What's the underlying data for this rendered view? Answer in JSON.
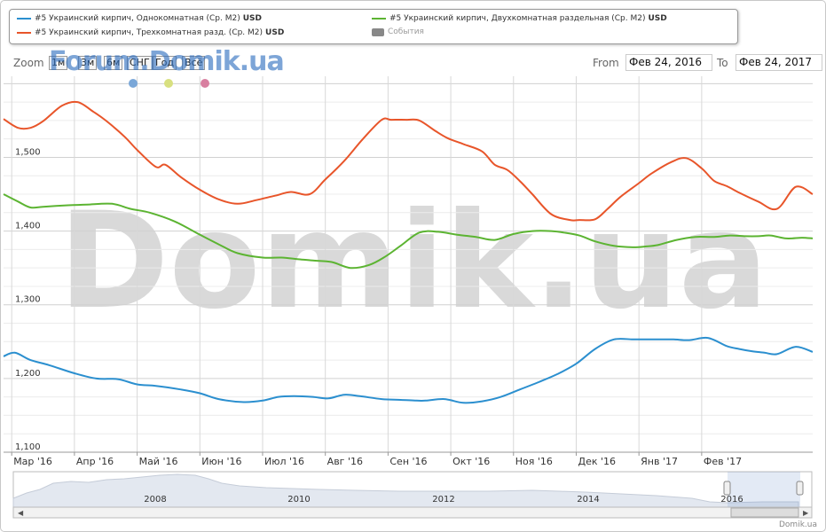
{
  "legend": {
    "items": [
      {
        "label": "#5 Украинский кирпич, Однокомнатная (Ср. М2)",
        "unit": "USD",
        "color": "#2b8fcf"
      },
      {
        "label": "#5 Украинский кирпич, Двухкомнатная раздельная (Ср. М2)",
        "unit": "USD",
        "color": "#5cb432"
      },
      {
        "label": "#5 Украинский кирпич, Трехкомнатная разд. (Ср. М2)",
        "unit": "USD",
        "color": "#e8552a"
      },
      {
        "label": "События",
        "unit": "",
        "color": "#888888"
      }
    ]
  },
  "zoom": {
    "label": "Zoom",
    "buttons": [
      "1м",
      "3м",
      "6м",
      "СНГ",
      "Год",
      "Всё"
    ]
  },
  "watermark_small": "Forum.Domik.ua",
  "watermark_big": "Domik.ua",
  "range": {
    "from_label": "From",
    "from_value": "Фев 24, 2016",
    "to_label": "To",
    "to_value": "Фев 24, 2017"
  },
  "event_dots": [
    {
      "color": "#7aa7d8"
    },
    {
      "color": "#d8e080"
    },
    {
      "color": "#d87fa0"
    }
  ],
  "navigator": {
    "labels": [
      "2008",
      "2010",
      "2012",
      "2014",
      "2016"
    ]
  },
  "credit": "Domik.ua",
  "chart_data": {
    "type": "line",
    "ylim": [
      1100,
      1610
    ],
    "yticks": [
      "1,100",
      "1,200",
      "1,300",
      "1,400",
      "1,500"
    ],
    "ytick_values": [
      1100,
      1200,
      1300,
      1400,
      1500
    ],
    "x_axis_labels": [
      "Мар '16",
      "Апр '16",
      "Май '16",
      "Июн '16",
      "Июл '16",
      "Авг '16",
      "Сен '16",
      "Окт '16",
      "Ноя '16",
      "Дек '16",
      "Янв '17",
      "Фев '17"
    ],
    "x_range": [
      -0.13,
      12.77
    ],
    "series": [
      {
        "name": "#5 Украинский кирпич, Однокомнатная (Ср. М2)",
        "color": "#2b8fcf",
        "x": [
          -0.13,
          0.05,
          0.3,
          0.6,
          1.0,
          1.35,
          1.7,
          2.0,
          2.3,
          2.7,
          3.0,
          3.3,
          3.7,
          4.0,
          4.25,
          4.5,
          4.8,
          5.05,
          5.3,
          5.55,
          5.9,
          6.2,
          6.45,
          6.6,
          6.9,
          7.2,
          7.5,
          7.8,
          8.1,
          8.4,
          8.7,
          9.0,
          9.3,
          9.6,
          9.9,
          10.1,
          10.3,
          10.55,
          10.8,
          11.1,
          11.4,
          11.6,
          11.8,
          12.0,
          12.2,
          12.5,
          12.77
        ],
        "y": [
          1230,
          1235,
          1225,
          1218,
          1207,
          1200,
          1199,
          1192,
          1190,
          1185,
          1180,
          1172,
          1168,
          1170,
          1175,
          1176,
          1175,
          1173,
          1178,
          1176,
          1172,
          1171,
          1170,
          1170,
          1172,
          1167,
          1169,
          1175,
          1185,
          1195,
          1206,
          1220,
          1240,
          1253,
          1253,
          1253,
          1253,
          1253,
          1252,
          1255,
          1244,
          1240,
          1237,
          1235,
          1233,
          1243,
          1236
        ]
      },
      {
        "name": "#5 Украинский кирпич, Двухкомнатная раздельная (Ср. М2)",
        "color": "#5cb432",
        "x": [
          -0.13,
          0.1,
          0.3,
          0.5,
          0.9,
          1.2,
          1.6,
          1.9,
          2.2,
          2.6,
          3.0,
          3.3,
          3.6,
          4.0,
          4.3,
          4.55,
          4.8,
          5.1,
          5.4,
          5.7,
          5.95,
          6.2,
          6.5,
          6.8,
          7.1,
          7.4,
          7.7,
          8.0,
          8.3,
          8.6,
          8.8,
          9.05,
          9.3,
          9.6,
          9.9,
          10.1,
          10.3,
          10.6,
          10.9,
          11.2,
          11.45,
          11.7,
          11.9,
          12.1,
          12.35,
          12.6,
          12.77
        ],
        "y": [
          1450,
          1440,
          1432,
          1433,
          1435,
          1436,
          1437,
          1430,
          1425,
          1413,
          1395,
          1382,
          1370,
          1364,
          1364,
          1362,
          1360,
          1358,
          1350,
          1354,
          1365,
          1380,
          1398,
          1399,
          1395,
          1392,
          1388,
          1396,
          1400,
          1400,
          1398,
          1394,
          1386,
          1380,
          1378,
          1379,
          1381,
          1388,
          1392,
          1392,
          1394,
          1393,
          1393,
          1394,
          1390,
          1391,
          1390
        ]
      },
      {
        "name": "#5 Украинский кирпич, Трехкомнатная разд. (Ср. М2)",
        "color": "#e8552a",
        "x": [
          -0.13,
          0.1,
          0.3,
          0.5,
          0.8,
          1.05,
          1.3,
          1.5,
          1.8,
          2.0,
          2.3,
          2.45,
          2.7,
          3.0,
          3.3,
          3.6,
          3.9,
          4.2,
          4.45,
          4.75,
          5.0,
          5.3,
          5.6,
          5.9,
          6.05,
          6.3,
          6.5,
          6.75,
          6.95,
          7.2,
          7.5,
          7.7,
          7.9,
          8.1,
          8.3,
          8.6,
          8.9,
          9.05,
          9.3,
          9.5,
          9.7,
          10.0,
          10.2,
          10.5,
          10.75,
          11.0,
          11.2,
          11.4,
          11.6,
          11.9,
          12.2,
          12.5,
          12.77
        ],
        "y": [
          1552,
          1540,
          1540,
          1549,
          1570,
          1575,
          1562,
          1550,
          1528,
          1510,
          1487,
          1490,
          1473,
          1456,
          1443,
          1437,
          1442,
          1448,
          1453,
          1450,
          1470,
          1495,
          1525,
          1551,
          1551,
          1551,
          1550,
          1536,
          1526,
          1518,
          1508,
          1490,
          1483,
          1468,
          1450,
          1423,
          1415,
          1415,
          1416,
          1430,
          1446,
          1465,
          1478,
          1493,
          1499,
          1485,
          1468,
          1461,
          1452,
          1440,
          1430,
          1460,
          1450
        ]
      }
    ]
  }
}
